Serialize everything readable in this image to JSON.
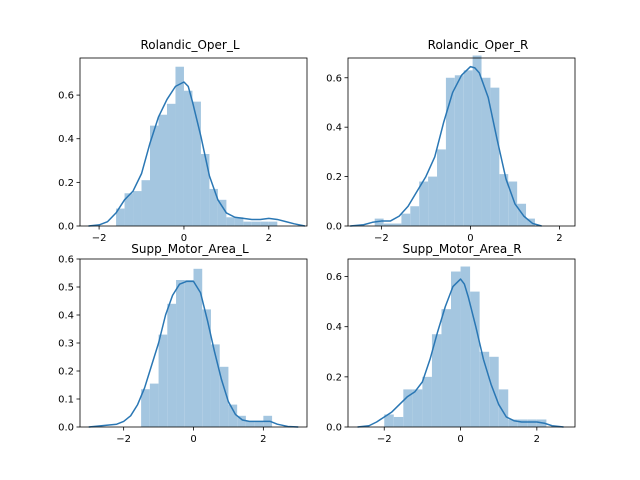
{
  "colors": {
    "bar": "#a4c6e0",
    "kde": "#2a77b4"
  },
  "chart_data": [
    {
      "type": "bar",
      "title": "Rolandic_Oper_L",
      "xlim": [
        -2.45,
        2.9
      ],
      "ylim": [
        0,
        0.77
      ],
      "xticks": [
        {
          "v": -2,
          "label": "−2"
        },
        {
          "v": 0,
          "label": "0"
        },
        {
          "v": 2,
          "label": "2"
        }
      ],
      "yticks": [
        {
          "v": 0,
          "label": "0.0"
        },
        {
          "v": 0.2,
          "label": "0.2"
        },
        {
          "v": 0.4,
          "label": "0.4"
        },
        {
          "v": 0.6,
          "label": "0.6"
        }
      ],
      "bins": [
        [
          -1.6,
          -1.4,
          0.08
        ],
        [
          -1.4,
          -1.2,
          0.15
        ],
        [
          -1.2,
          -1.0,
          0.16
        ],
        [
          -1.0,
          -0.8,
          0.21
        ],
        [
          -0.8,
          -0.6,
          0.46
        ],
        [
          -0.6,
          -0.4,
          0.51
        ],
        [
          -0.4,
          -0.2,
          0.56
        ],
        [
          -0.2,
          0.0,
          0.73
        ],
        [
          0.0,
          0.2,
          0.62
        ],
        [
          0.2,
          0.4,
          0.57
        ],
        [
          0.4,
          0.6,
          0.33
        ],
        [
          0.6,
          0.8,
          0.17
        ],
        [
          0.8,
          1.0,
          0.12
        ],
        [
          1.0,
          1.2,
          0.04
        ],
        [
          1.2,
          1.4,
          0.04
        ],
        [
          1.4,
          1.6,
          0.02
        ],
        [
          1.6,
          1.8,
          0.02
        ],
        [
          1.8,
          2.0,
          0.02
        ],
        [
          2.0,
          2.2,
          0.02
        ]
      ],
      "kde": [
        [
          -2.25,
          0.0
        ],
        [
          -2.0,
          0.005
        ],
        [
          -1.8,
          0.02
        ],
        [
          -1.6,
          0.06
        ],
        [
          -1.4,
          0.12
        ],
        [
          -1.2,
          0.16
        ],
        [
          -1.0,
          0.24
        ],
        [
          -0.8,
          0.38
        ],
        [
          -0.6,
          0.5
        ],
        [
          -0.4,
          0.58
        ],
        [
          -0.2,
          0.64
        ],
        [
          0.0,
          0.66
        ],
        [
          0.1,
          0.64
        ],
        [
          0.2,
          0.57
        ],
        [
          0.4,
          0.41
        ],
        [
          0.6,
          0.23
        ],
        [
          0.8,
          0.12
        ],
        [
          1.0,
          0.06
        ],
        [
          1.2,
          0.04
        ],
        [
          1.4,
          0.035
        ],
        [
          1.6,
          0.03
        ],
        [
          1.8,
          0.03
        ],
        [
          2.0,
          0.035
        ],
        [
          2.2,
          0.03
        ],
        [
          2.4,
          0.02
        ],
        [
          2.6,
          0.01
        ],
        [
          2.85,
          0.0
        ]
      ]
    },
    {
      "type": "bar",
      "title": "Rolandic_Oper_R",
      "xlim": [
        -2.75,
        2.35
      ],
      "ylim": [
        0,
        0.68
      ],
      "xticks": [
        {
          "v": -2,
          "label": "−2"
        },
        {
          "v": 0,
          "label": "0"
        },
        {
          "v": 2,
          "label": "2"
        }
      ],
      "yticks": [
        {
          "v": 0,
          "label": "0.0"
        },
        {
          "v": 0.2,
          "label": "0.2"
        },
        {
          "v": 0.4,
          "label": "0.4"
        },
        {
          "v": 0.6,
          "label": "0.6"
        }
      ],
      "bins": [
        [
          -2.15,
          -1.95,
          0.03
        ],
        [
          -1.95,
          -1.75,
          0.01
        ],
        [
          -1.75,
          -1.55,
          0.01
        ],
        [
          -1.55,
          -1.35,
          0.05
        ],
        [
          -1.35,
          -1.15,
          0.08
        ],
        [
          -1.15,
          -0.95,
          0.18
        ],
        [
          -0.95,
          -0.75,
          0.2
        ],
        [
          -0.75,
          -0.55,
          0.31
        ],
        [
          -0.55,
          -0.35,
          0.6
        ],
        [
          -0.35,
          -0.15,
          0.61
        ],
        [
          -0.15,
          0.05,
          0.63
        ],
        [
          0.05,
          0.25,
          0.69
        ],
        [
          0.25,
          0.45,
          0.6
        ],
        [
          0.45,
          0.65,
          0.56
        ],
        [
          0.65,
          0.85,
          0.21
        ],
        [
          0.85,
          1.05,
          0.18
        ],
        [
          1.05,
          1.25,
          0.09
        ],
        [
          1.25,
          1.45,
          0.03
        ]
      ],
      "kde": [
        [
          -2.7,
          0.0
        ],
        [
          -2.4,
          0.005
        ],
        [
          -2.2,
          0.015
        ],
        [
          -2.0,
          0.02
        ],
        [
          -1.8,
          0.02
        ],
        [
          -1.6,
          0.04
        ],
        [
          -1.4,
          0.08
        ],
        [
          -1.2,
          0.14
        ],
        [
          -1.0,
          0.2
        ],
        [
          -0.8,
          0.28
        ],
        [
          -0.6,
          0.42
        ],
        [
          -0.4,
          0.54
        ],
        [
          -0.2,
          0.61
        ],
        [
          0.0,
          0.645
        ],
        [
          0.1,
          0.64
        ],
        [
          0.2,
          0.62
        ],
        [
          0.4,
          0.52
        ],
        [
          0.6,
          0.35
        ],
        [
          0.8,
          0.19
        ],
        [
          1.0,
          0.09
        ],
        [
          1.2,
          0.04
        ],
        [
          1.4,
          0.01
        ],
        [
          1.6,
          0.0
        ]
      ]
    },
    {
      "type": "bar",
      "title": "Supp_Motor_Area_L",
      "xlim": [
        -3.25,
        3.25
      ],
      "ylim": [
        0,
        0.6
      ],
      "xticks": [
        {
          "v": -2,
          "label": "−2"
        },
        {
          "v": 0,
          "label": "0"
        },
        {
          "v": 2,
          "label": "2"
        }
      ],
      "yticks": [
        {
          "v": 0,
          "label": "0.0"
        },
        {
          "v": 0.1,
          "label": "0.1"
        },
        {
          "v": 0.2,
          "label": "0.2"
        },
        {
          "v": 0.3,
          "label": "0.3"
        },
        {
          "v": 0.4,
          "label": "0.4"
        },
        {
          "v": 0.5,
          "label": "0.5"
        },
        {
          "v": 0.6,
          "label": "0.6"
        }
      ],
      "bins": [
        [
          -1.5,
          -1.25,
          0.135
        ],
        [
          -1.25,
          -1.0,
          0.155
        ],
        [
          -1.0,
          -0.75,
          0.33
        ],
        [
          -0.75,
          -0.5,
          0.44
        ],
        [
          -0.5,
          -0.25,
          0.525
        ],
        [
          -0.25,
          0.0,
          0.525
        ],
        [
          0.0,
          0.25,
          0.565
        ],
        [
          0.25,
          0.5,
          0.42
        ],
        [
          0.5,
          0.75,
          0.295
        ],
        [
          0.75,
          1.0,
          0.215
        ],
        [
          1.0,
          1.25,
          0.08
        ],
        [
          1.25,
          1.5,
          0.04
        ],
        [
          1.5,
          1.75,
          0.02
        ],
        [
          1.75,
          2.0,
          0.02
        ],
        [
          2.0,
          2.25,
          0.04
        ]
      ],
      "kde": [
        [
          -3.0,
          0.0
        ],
        [
          -2.6,
          0.005
        ],
        [
          -2.2,
          0.01
        ],
        [
          -2.0,
          0.02
        ],
        [
          -1.8,
          0.04
        ],
        [
          -1.6,
          0.08
        ],
        [
          -1.4,
          0.14
        ],
        [
          -1.2,
          0.22
        ],
        [
          -1.0,
          0.3
        ],
        [
          -0.8,
          0.4
        ],
        [
          -0.6,
          0.47
        ],
        [
          -0.4,
          0.51
        ],
        [
          -0.2,
          0.52
        ],
        [
          0.0,
          0.52
        ],
        [
          0.2,
          0.48
        ],
        [
          0.4,
          0.38
        ],
        [
          0.6,
          0.27
        ],
        [
          0.8,
          0.17
        ],
        [
          1.0,
          0.09
        ],
        [
          1.2,
          0.045
        ],
        [
          1.4,
          0.025
        ],
        [
          1.6,
          0.02
        ],
        [
          1.8,
          0.02
        ],
        [
          2.0,
          0.02
        ],
        [
          2.2,
          0.02
        ],
        [
          2.4,
          0.01
        ],
        [
          2.7,
          0.002
        ],
        [
          3.0,
          0.0
        ]
      ]
    },
    {
      "type": "bar",
      "title": "Supp_Motor_Area_R",
      "xlim": [
        -2.95,
        3.0
      ],
      "ylim": [
        0,
        0.67
      ],
      "xticks": [
        {
          "v": -2,
          "label": "−2"
        },
        {
          "v": 0,
          "label": "0"
        },
        {
          "v": 2,
          "label": "2"
        }
      ],
      "yticks": [
        {
          "v": 0,
          "label": "0.0"
        },
        {
          "v": 0.2,
          "label": "0.2"
        },
        {
          "v": 0.4,
          "label": "0.4"
        },
        {
          "v": 0.6,
          "label": "0.6"
        }
      ],
      "bins": [
        [
          -2.0,
          -1.75,
          0.05
        ],
        [
          -1.75,
          -1.5,
          0.04
        ],
        [
          -1.5,
          -1.25,
          0.15
        ],
        [
          -1.25,
          -1.0,
          0.15
        ],
        [
          -1.0,
          -0.75,
          0.2
        ],
        [
          -0.75,
          -0.5,
          0.37
        ],
        [
          -0.5,
          -0.25,
          0.47
        ],
        [
          -0.25,
          0.0,
          0.62
        ],
        [
          0.0,
          0.25,
          0.64
        ],
        [
          0.25,
          0.5,
          0.54
        ],
        [
          0.5,
          0.75,
          0.3
        ],
        [
          0.75,
          1.0,
          0.28
        ],
        [
          1.0,
          1.25,
          0.15
        ],
        [
          1.25,
          1.5,
          0.03
        ],
        [
          1.5,
          1.75,
          0.03
        ],
        [
          1.75,
          2.0,
          0.03
        ],
        [
          2.0,
          2.25,
          0.03
        ]
      ],
      "kde": [
        [
          -2.7,
          0.0
        ],
        [
          -2.4,
          0.005
        ],
        [
          -2.2,
          0.02
        ],
        [
          -2.0,
          0.04
        ],
        [
          -1.8,
          0.06
        ],
        [
          -1.6,
          0.09
        ],
        [
          -1.4,
          0.12
        ],
        [
          -1.2,
          0.14
        ],
        [
          -1.0,
          0.18
        ],
        [
          -0.8,
          0.27
        ],
        [
          -0.6,
          0.38
        ],
        [
          -0.4,
          0.48
        ],
        [
          -0.2,
          0.56
        ],
        [
          0.0,
          0.59
        ],
        [
          0.1,
          0.57
        ],
        [
          0.2,
          0.52
        ],
        [
          0.4,
          0.4
        ],
        [
          0.6,
          0.27
        ],
        [
          0.8,
          0.17
        ],
        [
          1.0,
          0.09
        ],
        [
          1.2,
          0.04
        ],
        [
          1.4,
          0.025
        ],
        [
          1.6,
          0.02
        ],
        [
          1.8,
          0.02
        ],
        [
          2.0,
          0.02
        ],
        [
          2.2,
          0.015
        ],
        [
          2.4,
          0.005
        ],
        [
          2.7,
          0.0
        ]
      ]
    }
  ]
}
